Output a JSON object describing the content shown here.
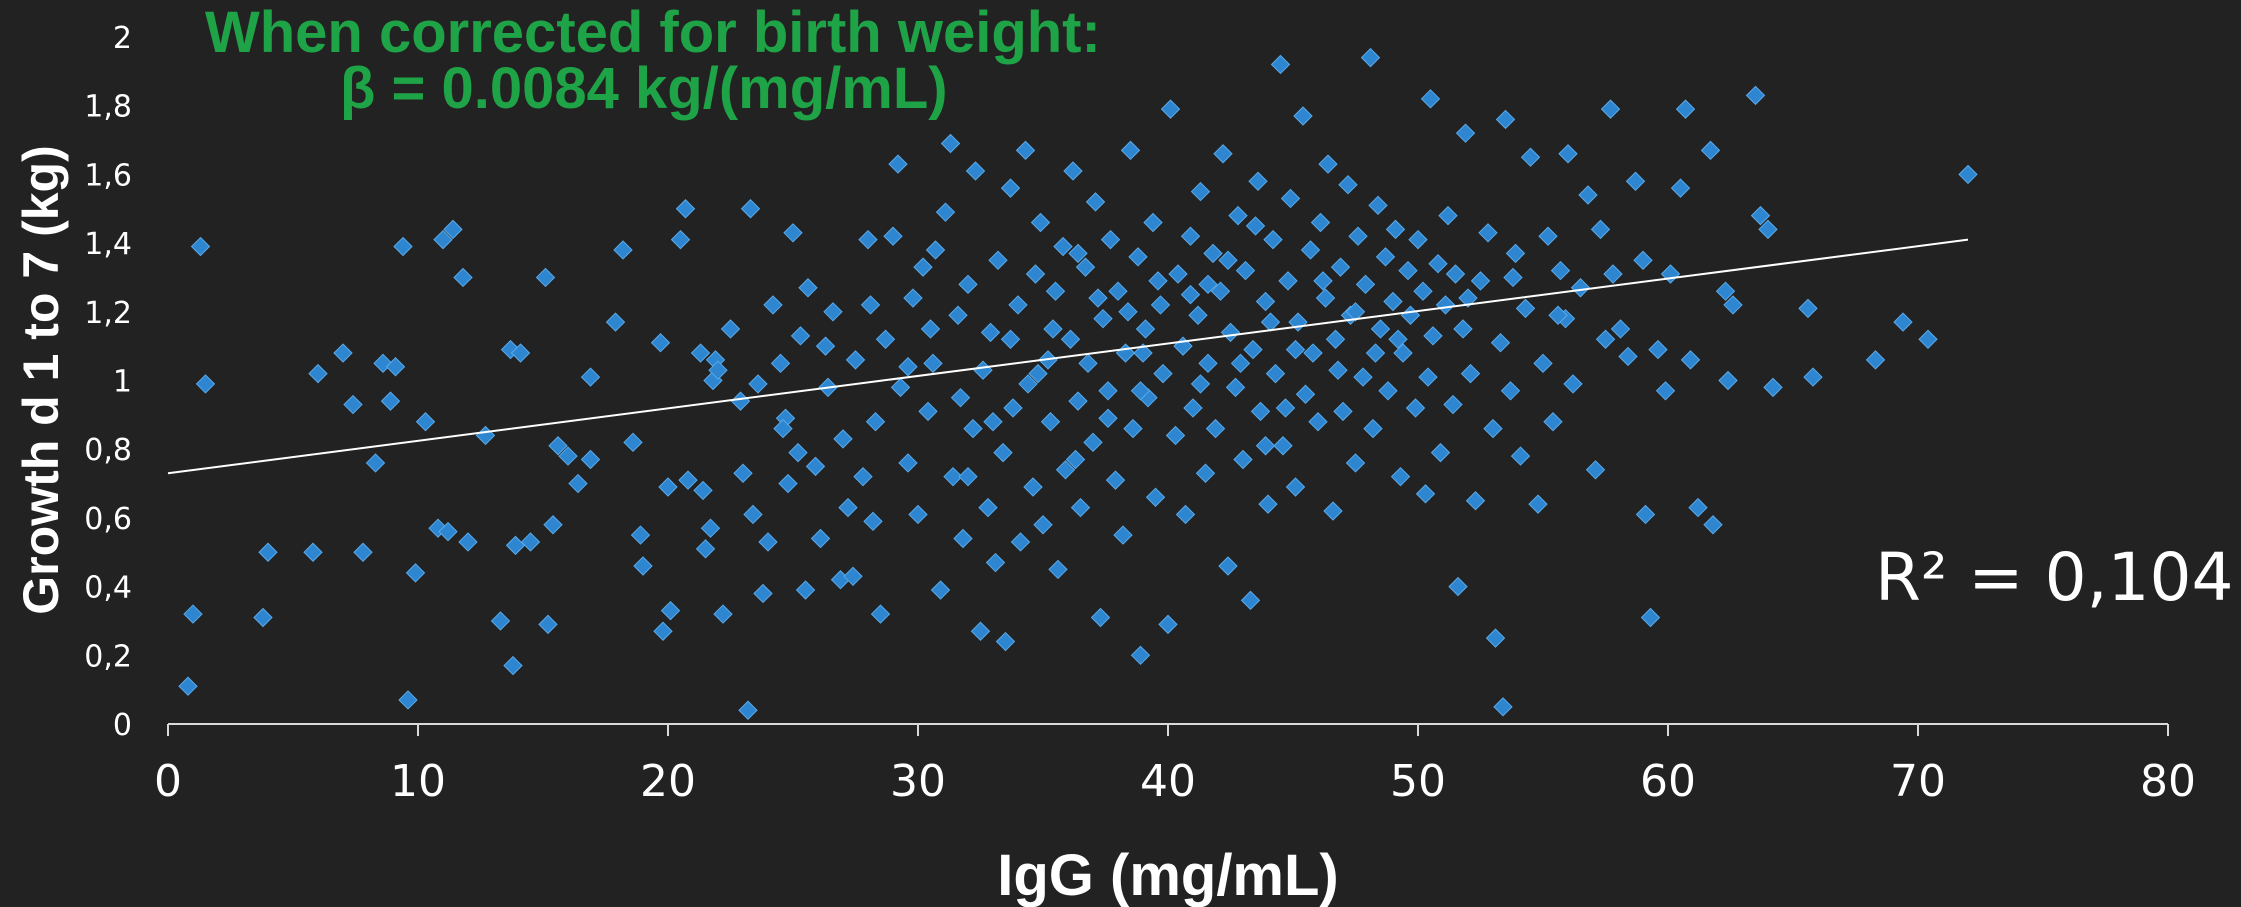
{
  "chart_data": {
    "type": "scatter",
    "title": "",
    "annotation_line1": "When corrected for birth weight:",
    "annotation_line2": "β = 0.0084  kg/(mg/mL)",
    "r2_label": "R² = 0,104",
    "xlabel": "IgG (mg/mL)",
    "ylabel": "Growth d 1 to 7 (kg)",
    "xlim": [
      0,
      80
    ],
    "ylim": [
      0,
      2
    ],
    "x_ticks": [
      0,
      10,
      20,
      30,
      40,
      50,
      60,
      70,
      80
    ],
    "x_tick_labels": [
      "0",
      "10",
      "20",
      "30",
      "40",
      "50",
      "60",
      "70",
      "80"
    ],
    "y_ticks": [
      0,
      0.2,
      0.4,
      0.6,
      0.8,
      1,
      1.2,
      1.4,
      1.6,
      1.8,
      2
    ],
    "y_tick_labels": [
      "0",
      "0,2",
      "0,4",
      "0,6",
      "0,8",
      "1",
      "1,2",
      "1,4",
      "1,6",
      "1,8",
      "2"
    ],
    "grid": false,
    "trendline": {
      "x": [
        0,
        72
      ],
      "y": [
        0.73,
        1.41
      ]
    },
    "colors": {
      "marker": "#2e86d1",
      "trendline": "#ffffff",
      "annotation": "#1fa347",
      "background": "#222222"
    },
    "points": [
      [
        0.8,
        0.11
      ],
      [
        1.0,
        0.32
      ],
      [
        1.3,
        1.39
      ],
      [
        1.5,
        0.99
      ],
      [
        3.8,
        0.31
      ],
      [
        4.0,
        0.5
      ],
      [
        5.8,
        0.5
      ],
      [
        6.0,
        1.02
      ],
      [
        7.0,
        1.08
      ],
      [
        7.4,
        0.93
      ],
      [
        7.8,
        0.5
      ],
      [
        8.3,
        0.76
      ],
      [
        8.6,
        1.05
      ],
      [
        8.9,
        0.94
      ],
      [
        9.1,
        1.04
      ],
      [
        9.4,
        1.39
      ],
      [
        9.6,
        0.07
      ],
      [
        9.9,
        0.44
      ],
      [
        10.3,
        0.88
      ],
      [
        10.8,
        0.57
      ],
      [
        11.0,
        1.41
      ],
      [
        11.2,
        0.56
      ],
      [
        11.4,
        1.44
      ],
      [
        11.8,
        1.3
      ],
      [
        12.0,
        0.53
      ],
      [
        12.7,
        0.84
      ],
      [
        13.3,
        0.3
      ],
      [
        13.7,
        1.09
      ],
      [
        13.8,
        0.17
      ],
      [
        13.9,
        0.52
      ],
      [
        14.1,
        1.08
      ],
      [
        14.5,
        0.53
      ],
      [
        15.1,
        1.3
      ],
      [
        15.2,
        0.29
      ],
      [
        15.4,
        0.58
      ],
      [
        15.6,
        0.81
      ],
      [
        16.0,
        0.78
      ],
      [
        16.4,
        0.7
      ],
      [
        16.9,
        1.01
      ],
      [
        16.9,
        0.77
      ],
      [
        17.9,
        1.17
      ],
      [
        18.2,
        1.38
      ],
      [
        18.6,
        0.82
      ],
      [
        18.9,
        0.55
      ],
      [
        19.0,
        0.46
      ],
      [
        19.7,
        1.11
      ],
      [
        19.8,
        0.27
      ],
      [
        20.0,
        0.69
      ],
      [
        20.1,
        0.33
      ],
      [
        20.5,
        1.41
      ],
      [
        20.7,
        1.5
      ],
      [
        20.8,
        0.71
      ],
      [
        21.3,
        1.08
      ],
      [
        21.4,
        0.68
      ],
      [
        21.5,
        0.51
      ],
      [
        21.7,
        0.57
      ],
      [
        21.8,
        1.0
      ],
      [
        21.9,
        1.06
      ],
      [
        22.0,
        1.03
      ],
      [
        22.2,
        0.32
      ],
      [
        22.5,
        1.15
      ],
      [
        22.9,
        0.94
      ],
      [
        23.0,
        0.73
      ],
      [
        23.2,
        0.04
      ],
      [
        23.3,
        1.5
      ],
      [
        23.4,
        0.61
      ],
      [
        23.6,
        0.99
      ],
      [
        23.8,
        0.38
      ],
      [
        24.0,
        0.53
      ],
      [
        24.2,
        1.22
      ],
      [
        24.5,
        1.05
      ],
      [
        24.7,
        0.89
      ],
      [
        24.8,
        0.7
      ],
      [
        25.0,
        1.43
      ],
      [
        25.2,
        0.79
      ],
      [
        25.5,
        0.39
      ],
      [
        25.6,
        1.27
      ],
      [
        25.9,
        0.75
      ],
      [
        26.1,
        0.54
      ],
      [
        26.3,
        1.1
      ],
      [
        26.6,
        1.2
      ],
      [
        26.9,
        0.42
      ],
      [
        27.0,
        0.83
      ],
      [
        27.2,
        0.63
      ],
      [
        27.4,
        0.43
      ],
      [
        27.5,
        1.06
      ],
      [
        27.8,
        0.72
      ],
      [
        28.0,
        1.41
      ],
      [
        28.2,
        0.59
      ],
      [
        28.3,
        0.88
      ],
      [
        28.5,
        0.32
      ],
      [
        28.7,
        1.12
      ],
      [
        29.0,
        1.42
      ],
      [
        29.2,
        1.63
      ],
      [
        29.3,
        0.98
      ],
      [
        29.6,
        0.76
      ],
      [
        29.8,
        1.24
      ],
      [
        30.0,
        0.61
      ],
      [
        30.2,
        1.33
      ],
      [
        30.4,
        0.91
      ],
      [
        30.6,
        1.05
      ],
      [
        30.7,
        1.38
      ],
      [
        30.9,
        0.39
      ],
      [
        31.1,
        1.49
      ],
      [
        31.3,
        1.69
      ],
      [
        31.4,
        0.72
      ],
      [
        31.6,
        1.19
      ],
      [
        31.8,
        0.54
      ],
      [
        32.0,
        1.28
      ],
      [
        32.2,
        0.86
      ],
      [
        32.3,
        1.61
      ],
      [
        32.5,
        0.27
      ],
      [
        32.6,
        1.03
      ],
      [
        32.8,
        0.63
      ],
      [
        32.9,
        1.14
      ],
      [
        33.1,
        0.47
      ],
      [
        33.2,
        1.35
      ],
      [
        33.4,
        0.79
      ],
      [
        33.5,
        0.24
      ],
      [
        33.7,
        1.56
      ],
      [
        33.8,
        0.92
      ],
      [
        34.0,
        1.22
      ],
      [
        34.1,
        0.53
      ],
      [
        34.3,
        1.67
      ],
      [
        34.4,
        0.99
      ],
      [
        34.6,
        0.69
      ],
      [
        34.7,
        1.31
      ],
      [
        34.9,
        1.46
      ],
      [
        35.0,
        0.58
      ],
      [
        35.2,
        1.06
      ],
      [
        35.3,
        0.88
      ],
      [
        35.5,
        1.26
      ],
      [
        35.6,
        0.45
      ],
      [
        35.8,
        1.39
      ],
      [
        35.9,
        0.74
      ],
      [
        36.1,
        1.12
      ],
      [
        36.2,
        1.61
      ],
      [
        36.4,
        0.94
      ],
      [
        36.5,
        0.63
      ],
      [
        36.7,
        1.33
      ],
      [
        36.8,
        1.05
      ],
      [
        37.0,
        0.82
      ],
      [
        37.1,
        1.52
      ],
      [
        37.3,
        0.31
      ],
      [
        37.4,
        1.18
      ],
      [
        37.6,
        0.97
      ],
      [
        37.7,
        1.41
      ],
      [
        37.9,
        0.71
      ],
      [
        38.0,
        1.26
      ],
      [
        38.2,
        0.55
      ],
      [
        38.3,
        1.08
      ],
      [
        38.5,
        1.67
      ],
      [
        38.6,
        0.86
      ],
      [
        38.8,
        1.36
      ],
      [
        38.9,
        0.2
      ],
      [
        39.1,
        1.15
      ],
      [
        39.2,
        0.95
      ],
      [
        39.4,
        1.46
      ],
      [
        39.5,
        0.66
      ],
      [
        39.7,
        1.22
      ],
      [
        39.8,
        1.02
      ],
      [
        40.0,
        0.29
      ],
      [
        40.1,
        1.79
      ],
      [
        40.3,
        0.84
      ],
      [
        40.4,
        1.31
      ],
      [
        40.6,
        1.1
      ],
      [
        40.7,
        0.61
      ],
      [
        40.9,
        1.42
      ],
      [
        41.0,
        0.92
      ],
      [
        41.2,
        1.19
      ],
      [
        41.3,
        1.55
      ],
      [
        41.5,
        0.73
      ],
      [
        41.6,
        1.05
      ],
      [
        41.8,
        1.37
      ],
      [
        41.9,
        0.86
      ],
      [
        42.1,
        1.26
      ],
      [
        42.2,
        1.66
      ],
      [
        42.4,
        0.46
      ],
      [
        42.5,
        1.14
      ],
      [
        42.7,
        0.98
      ],
      [
        42.8,
        1.48
      ],
      [
        43.0,
        0.77
      ],
      [
        43.1,
        1.32
      ],
      [
        43.3,
        0.36
      ],
      [
        43.4,
        1.09
      ],
      [
        43.6,
        1.58
      ],
      [
        43.7,
        0.91
      ],
      [
        43.9,
        1.23
      ],
      [
        44.0,
        0.64
      ],
      [
        44.2,
        1.41
      ],
      [
        44.3,
        1.02
      ],
      [
        44.5,
        1.92
      ],
      [
        44.6,
        0.81
      ],
      [
        44.8,
        1.29
      ],
      [
        44.9,
        1.53
      ],
      [
        45.1,
        0.69
      ],
      [
        45.2,
        1.17
      ],
      [
        45.4,
        1.77
      ],
      [
        45.5,
        0.96
      ],
      [
        45.7,
        1.38
      ],
      [
        45.8,
        1.08
      ],
      [
        46.0,
        0.88
      ],
      [
        46.1,
        1.46
      ],
      [
        46.3,
        1.24
      ],
      [
        46.4,
        1.63
      ],
      [
        46.6,
        0.62
      ],
      [
        46.7,
        1.12
      ],
      [
        46.9,
        1.33
      ],
      [
        47.0,
        0.91
      ],
      [
        47.2,
        1.57
      ],
      [
        47.3,
        1.19
      ],
      [
        47.5,
        0.76
      ],
      [
        47.6,
        1.42
      ],
      [
        47.8,
        1.01
      ],
      [
        47.9,
        1.28
      ],
      [
        48.1,
        1.94
      ],
      [
        48.2,
        0.86
      ],
      [
        48.4,
        1.51
      ],
      [
        48.5,
        1.15
      ],
      [
        48.7,
        1.36
      ],
      [
        48.8,
        0.97
      ],
      [
        49.0,
        1.23
      ],
      [
        49.1,
        1.44
      ],
      [
        49.3,
        0.72
      ],
      [
        49.4,
        1.08
      ],
      [
        49.6,
        1.32
      ],
      [
        49.7,
        1.19
      ],
      [
        49.9,
        0.92
      ],
      [
        50.0,
        1.41
      ],
      [
        50.2,
        1.26
      ],
      [
        50.3,
        0.67
      ],
      [
        50.5,
        1.82
      ],
      [
        50.6,
        1.13
      ],
      [
        50.8,
        1.34
      ],
      [
        50.9,
        0.79
      ],
      [
        51.1,
        1.22
      ],
      [
        51.2,
        1.48
      ],
      [
        51.4,
        0.93
      ],
      [
        51.5,
        1.31
      ],
      [
        51.6,
        0.4
      ],
      [
        51.8,
        1.15
      ],
      [
        51.9,
        1.72
      ],
      [
        52.1,
        1.02
      ],
      [
        52.3,
        0.65
      ],
      [
        52.5,
        1.29
      ],
      [
        52.8,
        1.43
      ],
      [
        53.0,
        0.86
      ],
      [
        53.1,
        0.25
      ],
      [
        53.3,
        1.11
      ],
      [
        53.4,
        0.05
      ],
      [
        53.5,
        1.76
      ],
      [
        53.7,
        0.97
      ],
      [
        53.9,
        1.37
      ],
      [
        54.1,
        0.78
      ],
      [
        54.3,
        1.21
      ],
      [
        54.5,
        1.65
      ],
      [
        54.8,
        0.64
      ],
      [
        55.0,
        1.05
      ],
      [
        55.2,
        1.42
      ],
      [
        55.4,
        0.88
      ],
      [
        55.7,
        1.32
      ],
      [
        55.9,
        1.18
      ],
      [
        56.0,
        1.66
      ],
      [
        56.2,
        0.99
      ],
      [
        56.5,
        1.27
      ],
      [
        56.8,
        1.54
      ],
      [
        57.1,
        0.74
      ],
      [
        57.3,
        1.44
      ],
      [
        57.7,
        1.79
      ],
      [
        57.8,
        1.31
      ],
      [
        58.1,
        1.15
      ],
      [
        58.4,
        1.07
      ],
      [
        58.7,
        1.58
      ],
      [
        59.0,
        1.35
      ],
      [
        59.1,
        0.61
      ],
      [
        59.3,
        0.31
      ],
      [
        59.6,
        1.09
      ],
      [
        59.9,
        0.97
      ],
      [
        60.1,
        1.31
      ],
      [
        60.5,
        1.56
      ],
      [
        60.7,
        1.79
      ],
      [
        60.9,
        1.06
      ],
      [
        61.2,
        0.63
      ],
      [
        61.7,
        1.67
      ],
      [
        61.8,
        0.58
      ],
      [
        62.3,
        1.26
      ],
      [
        62.4,
        1.0
      ],
      [
        62.6,
        1.22
      ],
      [
        63.5,
        1.83
      ],
      [
        63.7,
        1.48
      ],
      [
        64.0,
        1.44
      ],
      [
        64.2,
        0.98
      ],
      [
        65.6,
        1.21
      ],
      [
        65.8,
        1.01
      ],
      [
        68.3,
        1.06
      ],
      [
        69.4,
        1.17
      ],
      [
        70.4,
        1.12
      ],
      [
        72.0,
        1.6
      ],
      [
        36.4,
        1.37
      ],
      [
        37.2,
        1.24
      ],
      [
        39.6,
        1.29
      ],
      [
        41.6,
        1.28
      ],
      [
        42.4,
        1.35
      ],
      [
        44.1,
        1.17
      ],
      [
        46.2,
        1.29
      ],
      [
        43.5,
        1.45
      ],
      [
        38.4,
        1.2
      ],
      [
        40.9,
        1.25
      ],
      [
        35.4,
        1.15
      ],
      [
        34.8,
        1.02
      ],
      [
        45.1,
        1.09
      ],
      [
        47.5,
        1.2
      ],
      [
        49.2,
        1.12
      ],
      [
        31.7,
        0.95
      ],
      [
        30.5,
        1.15
      ],
      [
        29.6,
        1.04
      ],
      [
        33.7,
        1.12
      ],
      [
        42.9,
        1.05
      ],
      [
        44.7,
        0.92
      ],
      [
        39.0,
        1.08
      ],
      [
        37.6,
        0.89
      ],
      [
        36.3,
        0.77
      ],
      [
        28.1,
        1.22
      ],
      [
        26.4,
        0.98
      ],
      [
        25.3,
        1.13
      ],
      [
        24.6,
        0.86
      ],
      [
        52.0,
        1.24
      ],
      [
        53.8,
        1.3
      ],
      [
        55.6,
        1.19
      ],
      [
        57.5,
        1.12
      ],
      [
        50.4,
        1.01
      ],
      [
        48.3,
        1.08
      ],
      [
        46.8,
        1.03
      ],
      [
        41.3,
        0.99
      ],
      [
        43.9,
        0.81
      ],
      [
        38.9,
        0.97
      ],
      [
        33.0,
        0.88
      ],
      [
        32.0,
        0.72
      ]
    ]
  }
}
